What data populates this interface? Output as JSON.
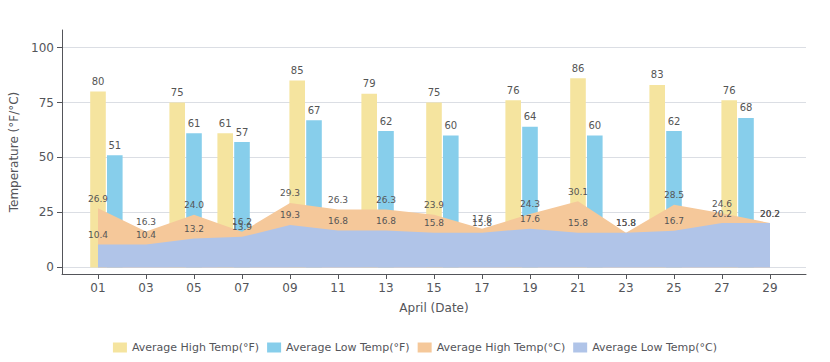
{
  "chart_data": {
    "type": "bar",
    "xlabel": "April (Date)",
    "ylabel": "Temperature (°F/°C)",
    "xlim": [
      -0.5,
      30.5
    ],
    "xticks": [
      {
        "value": 1,
        "label": "01"
      },
      {
        "value": 3,
        "label": "03"
      },
      {
        "value": 5,
        "label": "05"
      },
      {
        "value": 7,
        "label": "07"
      },
      {
        "value": 9,
        "label": "09"
      },
      {
        "value": 11,
        "label": "11"
      },
      {
        "value": 13,
        "label": "13"
      },
      {
        "value": 15,
        "label": "15"
      },
      {
        "value": 17,
        "label": "17"
      },
      {
        "value": 19,
        "label": "19"
      },
      {
        "value": 21,
        "label": "21"
      },
      {
        "value": 23,
        "label": "23"
      },
      {
        "value": 25,
        "label": "25"
      },
      {
        "value": 27,
        "label": "27"
      },
      {
        "value": 29,
        "label": "29"
      }
    ],
    "ylim": [
      -3,
      108
    ],
    "yticks": [
      0,
      25,
      50,
      75,
      100
    ],
    "grid": true,
    "legend": "bottom",
    "data_labels": true,
    "series": [
      {
        "name": "Average High Temp(°F)",
        "type": "bar",
        "color": "#F5E49F",
        "x": [
          1.0,
          4.3,
          6.3,
          9.3,
          12.3,
          15.0,
          18.3,
          21.0,
          24.3,
          27.3
        ],
        "values": [
          80,
          75,
          61,
          85,
          79,
          75,
          76,
          86,
          83,
          76
        ]
      },
      {
        "name": "Average Low Temp(°F)",
        "type": "bar",
        "color": "#87CEEB",
        "x": [
          1.7,
          5.0,
          7.0,
          10.0,
          13.0,
          15.7,
          19.0,
          21.7,
          25.0,
          28.0
        ],
        "values": [
          51,
          61,
          57,
          67,
          62,
          60,
          64,
          60,
          62,
          68
        ]
      },
      {
        "name": "Average High Temp(°C)",
        "type": "area",
        "color": "#F5C89A",
        "x": [
          1,
          3,
          5,
          7,
          9,
          11,
          13,
          15,
          17,
          19,
          21,
          23,
          25,
          27,
          29
        ],
        "values": [
          26.9,
          16.3,
          24.0,
          16.2,
          29.3,
          26.3,
          26.3,
          23.9,
          17.6,
          24.3,
          30.1,
          15.8,
          28.5,
          24.6,
          20.2
        ],
        "value_labels": [
          "26.9",
          "16.3",
          "24.0",
          "16.2",
          "29.3",
          "26.3",
          "26.3",
          "23.9",
          "17.6",
          "24.3",
          "30.1",
          "15.8",
          "28.5",
          "24.6",
          "20.2"
        ]
      },
      {
        "name": "Average Low Temp(°C)",
        "type": "area",
        "color": "#B0C4E8",
        "x": [
          1,
          3,
          5,
          7,
          9,
          11,
          13,
          15,
          17,
          19,
          21,
          23,
          25,
          27,
          29
        ],
        "values": [
          10.4,
          10.4,
          13.2,
          13.9,
          19.3,
          16.8,
          16.8,
          15.8,
          15.8,
          17.6,
          15.8,
          15.8,
          16.7,
          20.2,
          20.2
        ]
      }
    ]
  }
}
